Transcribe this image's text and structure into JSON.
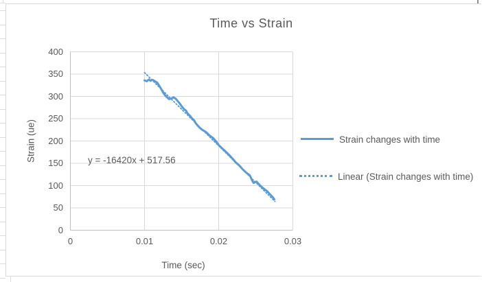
{
  "worksheet": {
    "context": "excel-sheet-with-embedded-chart"
  },
  "chart_data": {
    "type": "line",
    "title": "Time vs Strain",
    "xlabel": "Time (sec)",
    "ylabel": "Strain (ue)",
    "xlim": [
      0,
      0.03
    ],
    "ylim": [
      0,
      400
    ],
    "grid": true,
    "legend_position": "right",
    "x_ticks": {
      "values": [
        0,
        0.01,
        0.02,
        0.03
      ],
      "labels": [
        "0",
        "0.01",
        "0.02",
        "0.03"
      ]
    },
    "y_ticks": {
      "values": [
        0,
        50,
        100,
        150,
        200,
        250,
        300,
        350,
        400
      ],
      "labels": [
        "0",
        "50",
        "100",
        "150",
        "200",
        "250",
        "300",
        "350",
        "400"
      ]
    },
    "annotation": {
      "text": "y = -16420x + 517.56",
      "x": 0.0024,
      "y": 160
    },
    "series": [
      {
        "name": "Strain changes with time",
        "style": "solid",
        "color": "#5B9BD5",
        "points": [
          [
            0.01,
            336
          ],
          [
            0.0103,
            334
          ],
          [
            0.0106,
            338
          ],
          [
            0.0108,
            335
          ],
          [
            0.0111,
            337
          ],
          [
            0.0114,
            334
          ],
          [
            0.0117,
            331
          ],
          [
            0.0119,
            326
          ],
          [
            0.0122,
            318
          ],
          [
            0.0125,
            309
          ],
          [
            0.0128,
            302
          ],
          [
            0.0131,
            297
          ],
          [
            0.0133,
            294
          ],
          [
            0.0136,
            295
          ],
          [
            0.0139,
            298
          ],
          [
            0.0142,
            295
          ],
          [
            0.0144,
            291
          ],
          [
            0.0147,
            285
          ],
          [
            0.015,
            278
          ],
          [
            0.0153,
            272
          ],
          [
            0.0156,
            268
          ],
          [
            0.0158,
            262
          ],
          [
            0.0161,
            257
          ],
          [
            0.0164,
            251
          ],
          [
            0.0167,
            246
          ],
          [
            0.0169,
            240
          ],
          [
            0.0172,
            234
          ],
          [
            0.0175,
            229
          ],
          [
            0.0178,
            225
          ],
          [
            0.0181,
            222
          ],
          [
            0.0183,
            220
          ],
          [
            0.0188,
            212
          ],
          [
            0.0193,
            206
          ],
          [
            0.0197,
            198
          ],
          [
            0.02,
            191
          ],
          [
            0.0205,
            183
          ],
          [
            0.0209,
            177
          ],
          [
            0.0214,
            169
          ],
          [
            0.0219,
            160
          ],
          [
            0.0223,
            152
          ],
          [
            0.0228,
            145
          ],
          [
            0.0232,
            137
          ],
          [
            0.0237,
            129
          ],
          [
            0.0242,
            123
          ],
          [
            0.0245,
            112
          ],
          [
            0.0247,
            106
          ],
          [
            0.0251,
            109
          ],
          [
            0.0256,
            100
          ],
          [
            0.026,
            94
          ],
          [
            0.0265,
            88
          ],
          [
            0.0269,
            81
          ],
          [
            0.0273,
            74
          ],
          [
            0.0275,
            69
          ]
        ]
      },
      {
        "name": "Linear (Strain changes with time)",
        "style": "dotted",
        "color": "#5B9BD5",
        "trend_slope": -16420,
        "trend_intercept": 517.56,
        "x_range": [
          0.01,
          0.0276
        ]
      }
    ]
  },
  "colors": {
    "series_blue": "#5B9BD5",
    "gridline": "#D9D9D9",
    "axis_line": "#BFBFBF",
    "text_gray": "#595959",
    "chart_border": "#D9D9D9",
    "worksheet_gridline": "#DCDCDC"
  }
}
